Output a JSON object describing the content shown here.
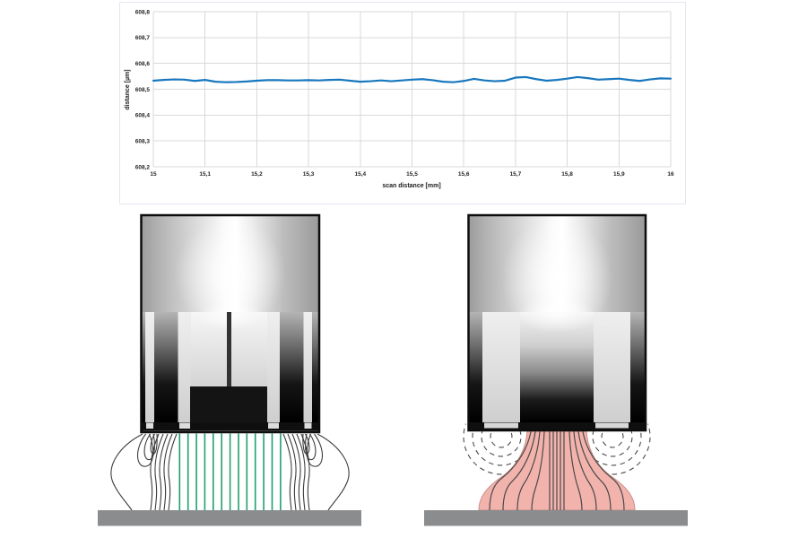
{
  "chart_data": {
    "type": "line",
    "title": "",
    "xlabel": "scan distance [mm]",
    "ylabel": "distance [µm]",
    "xlim": [
      15,
      16
    ],
    "ylim": [
      608.2,
      608.8
    ],
    "x_ticks": [
      "15",
      "15,1",
      "15,2",
      "15,3",
      "15,4",
      "15,5",
      "15,6",
      "15,7",
      "15,8",
      "15,9",
      "16"
    ],
    "y_ticks": [
      "608,2",
      "608,3",
      "608,4",
      "608,5",
      "608,6",
      "608,7",
      "608,8"
    ],
    "grid": true,
    "legend": "none",
    "line_color": "#1877be",
    "grid_color": "#d9d9d9",
    "tick_color": "#262626",
    "series": [
      {
        "x": [
          15,
          15.02,
          15.04,
          15.06,
          15.08,
          15.1,
          15.12,
          15.14,
          15.16,
          15.18,
          15.2,
          15.22,
          15.24,
          15.26,
          15.28,
          15.3,
          15.32,
          15.34,
          15.36,
          15.38,
          15.4,
          15.42,
          15.44,
          15.46,
          15.48,
          15.5,
          15.52,
          15.54,
          15.56,
          15.58,
          15.6,
          15.62,
          15.64,
          15.66,
          15.68,
          15.7,
          15.72,
          15.74,
          15.76,
          15.78,
          15.8,
          15.82,
          15.84,
          15.86,
          15.88,
          15.9,
          15.92,
          15.94,
          15.96,
          15.98,
          16
        ],
        "y": [
          608.533,
          608.536,
          608.538,
          608.537,
          608.532,
          608.536,
          608.529,
          608.527,
          608.528,
          608.53,
          608.533,
          608.535,
          608.535,
          608.534,
          608.534,
          608.535,
          608.534,
          608.536,
          608.537,
          608.533,
          608.529,
          608.531,
          608.534,
          608.531,
          608.534,
          608.537,
          608.539,
          608.535,
          608.529,
          608.527,
          608.532,
          608.54,
          608.534,
          608.531,
          608.533,
          608.545,
          608.547,
          608.539,
          608.533,
          608.536,
          608.541,
          608.547,
          608.543,
          608.537,
          608.539,
          608.541,
          608.536,
          608.532,
          608.538,
          608.542,
          608.541
        ]
      }
    ]
  },
  "diagrams": {
    "left": {
      "measuring_field_color": "#1ea06e",
      "stray_field_color": "#3c3c3c",
      "target_color": "#8a8c8e"
    },
    "right": {
      "field_fill_color": "#f3b3ad",
      "field_line_color": "#4a4a4a",
      "target_color": "#8a8c8e"
    }
  }
}
